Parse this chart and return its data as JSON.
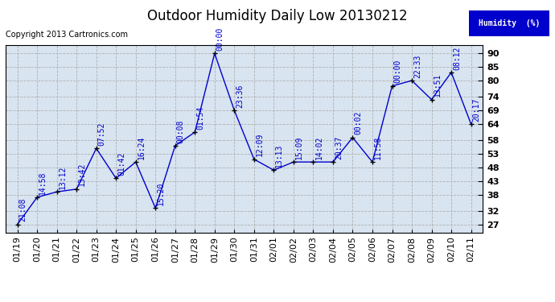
{
  "title": "Outdoor Humidity Daily Low 20130212",
  "copyright": "Copyright 2013 Cartronics.com",
  "legend_label": "Humidity  (%)",
  "x_labels": [
    "01/19",
    "01/20",
    "01/21",
    "01/22",
    "01/23",
    "01/24",
    "01/25",
    "01/26",
    "01/27",
    "01/28",
    "01/29",
    "01/30",
    "01/31",
    "02/01",
    "02/02",
    "02/03",
    "02/04",
    "02/05",
    "02/06",
    "02/07",
    "02/08",
    "02/09",
    "02/10",
    "02/11"
  ],
  "y_values": [
    27,
    37,
    39,
    40,
    55,
    44,
    50,
    33,
    56,
    61,
    90,
    69,
    51,
    47,
    50,
    50,
    50,
    59,
    50,
    78,
    80,
    73,
    83,
    64
  ],
  "times": [
    "21:08",
    "14:58",
    "13:12",
    "13:42",
    "07:52",
    "01:42",
    "16:24",
    "15:20",
    "00:08",
    "01:54",
    "00:00",
    "23:36",
    "12:09",
    "13:13",
    "15:09",
    "14:02",
    "20:37",
    "00:02",
    "11:58",
    "00:00",
    "22:33",
    "13:51",
    "08:12",
    "20:17"
  ],
  "y_ticks": [
    27,
    32,
    38,
    43,
    48,
    53,
    58,
    64,
    69,
    74,
    80,
    85,
    90
  ],
  "ylim": [
    24,
    93
  ],
  "line_color": "#0000cc",
  "bg_color": "#d8e4f0",
  "fig_bg_color": "#ffffff",
  "grid_color": "#aaaaaa",
  "title_color": "#000000",
  "label_color": "#0000cc",
  "legend_bg": "#0000cc",
  "legend_fg": "#ffffff",
  "annot_fontsize": 7,
  "tick_fontsize": 8,
  "title_fontsize": 12,
  "copyright_fontsize": 7
}
